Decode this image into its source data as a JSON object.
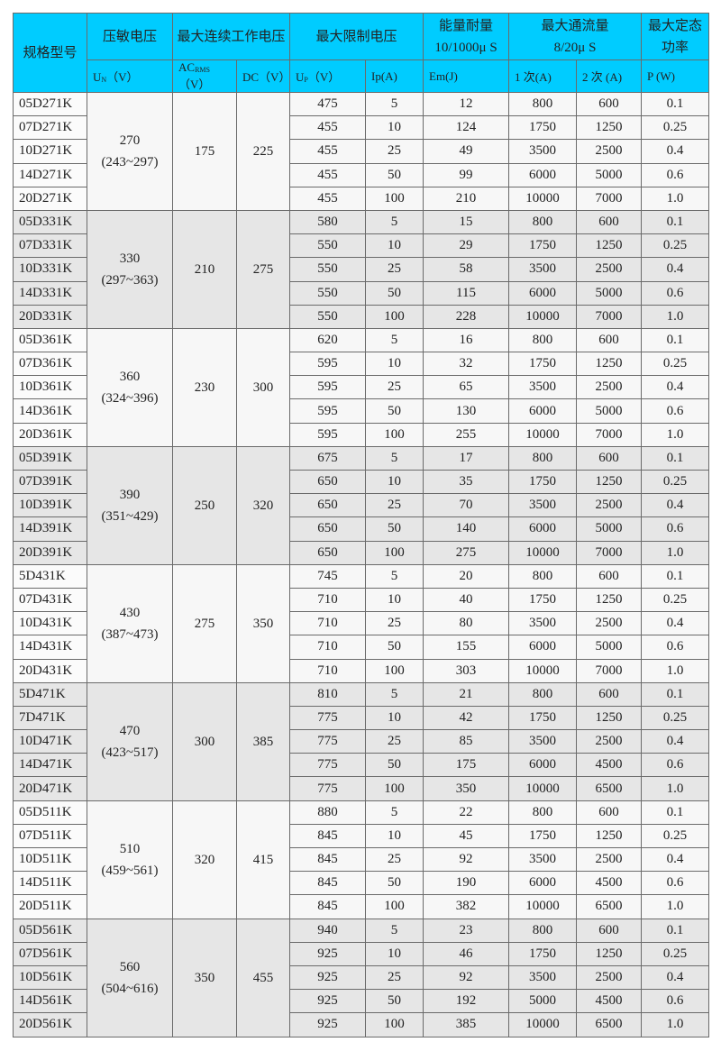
{
  "header": {
    "model": "规格型号",
    "varistor_voltage": "压敏电压",
    "max_continuous_voltage": "最大连续工作电压",
    "max_clamp_voltage": "最大限制电压",
    "energy": "能量耐量",
    "energy_sub": "10/1000μ S",
    "max_surge": "最大通流量",
    "max_surge_sub": "8/20μ S",
    "rated_power": "最大定态功率",
    "un": "U",
    "un_sub": "N",
    "un_unit": "（V）",
    "ac": "AC",
    "ac_sub": "RMS",
    "ac_unit": "（V）",
    "dc": "DC（V）",
    "up": "U",
    "up_sub": "P",
    "up_unit": "（V）",
    "ip": "Ip(A)",
    "em": "Em(J)",
    "once": "1 次(A)",
    "twice": "2 次 (A)",
    "p": "P (W)"
  },
  "groups": [
    {
      "un": "270",
      "range": "(243~297)",
      "ac": "175",
      "dc": "225",
      "rows": [
        [
          "05D271K",
          "475",
          "5",
          "12",
          "800",
          "600",
          "0.1"
        ],
        [
          "07D271K",
          "455",
          "10",
          "124",
          "1750",
          "1250",
          "0.25"
        ],
        [
          "10D271K",
          "455",
          "25",
          "49",
          "3500",
          "2500",
          "0.4"
        ],
        [
          "14D271K",
          "455",
          "50",
          "99",
          "6000",
          "5000",
          "0.6"
        ],
        [
          "20D271K",
          "455",
          "100",
          "210",
          "10000",
          "7000",
          "1.0"
        ]
      ]
    },
    {
      "un": "330",
      "range": "(297~363)",
      "ac": "210",
      "dc": "275",
      "rows": [
        [
          "05D331K",
          "580",
          "5",
          "15",
          "800",
          "600",
          "0.1"
        ],
        [
          "07D331K",
          "550",
          "10",
          "29",
          "1750",
          "1250",
          "0.25"
        ],
        [
          "10D331K",
          "550",
          "25",
          "58",
          "3500",
          "2500",
          "0.4"
        ],
        [
          "14D331K",
          "550",
          "50",
          "115",
          "6000",
          "5000",
          "0.6"
        ],
        [
          "20D331K",
          "550",
          "100",
          "228",
          "10000",
          "7000",
          "1.0"
        ]
      ]
    },
    {
      "un": "360",
      "range": "(324~396)",
      "ac": "230",
      "dc": "300",
      "rows": [
        [
          "05D361K",
          "620",
          "5",
          "16",
          "800",
          "600",
          "0.1"
        ],
        [
          "07D361K",
          "595",
          "10",
          "32",
          "1750",
          "1250",
          "0.25"
        ],
        [
          "10D361K",
          "595",
          "25",
          "65",
          "3500",
          "2500",
          "0.4"
        ],
        [
          "14D361K",
          "595",
          "50",
          "130",
          "6000",
          "5000",
          "0.6"
        ],
        [
          "20D361K",
          "595",
          "100",
          "255",
          "10000",
          "7000",
          "1.0"
        ]
      ]
    },
    {
      "un": "390",
      "range": "(351~429)",
      "ac": "250",
      "dc": "320",
      "rows": [
        [
          "05D391K",
          "675",
          "5",
          "17",
          "800",
          "600",
          "0.1"
        ],
        [
          "07D391K",
          "650",
          "10",
          "35",
          "1750",
          "1250",
          "0.25"
        ],
        [
          "10D391K",
          "650",
          "25",
          "70",
          "3500",
          "2500",
          "0.4"
        ],
        [
          "14D391K",
          "650",
          "50",
          "140",
          "6000",
          "5000",
          "0.6"
        ],
        [
          "20D391K",
          "650",
          "100",
          "275",
          "10000",
          "7000",
          "1.0"
        ]
      ]
    },
    {
      "un": "430",
      "range": "(387~473)",
      "ac": "275",
      "dc": "350",
      "rows": [
        [
          "5D431K",
          "745",
          "5",
          "20",
          "800",
          "600",
          "0.1"
        ],
        [
          "07D431K",
          "710",
          "10",
          "40",
          "1750",
          "1250",
          "0.25"
        ],
        [
          "10D431K",
          "710",
          "25",
          "80",
          "3500",
          "2500",
          "0.4"
        ],
        [
          "14D431K",
          "710",
          "50",
          "155",
          "6000",
          "5000",
          "0.6"
        ],
        [
          "20D431K",
          "710",
          "100",
          "303",
          "10000",
          "7000",
          "1.0"
        ]
      ]
    },
    {
      "un": "470",
      "range": "(423~517)",
      "ac": "300",
      "dc": "385",
      "rows": [
        [
          "5D471K",
          "810",
          "5",
          "21",
          "800",
          "600",
          "0.1"
        ],
        [
          "7D471K",
          "775",
          "10",
          "42",
          "1750",
          "1250",
          "0.25"
        ],
        [
          "10D471K",
          "775",
          "25",
          "85",
          "3500",
          "2500",
          "0.4"
        ],
        [
          "14D471K",
          "775",
          "50",
          "175",
          "6000",
          "4500",
          "0.6"
        ],
        [
          "20D471K",
          "775",
          "100",
          "350",
          "10000",
          "6500",
          "1.0"
        ]
      ]
    },
    {
      "un": "510",
      "range": "(459~561)",
      "ac": "320",
      "dc": "415",
      "rows": [
        [
          "05D511K",
          "880",
          "5",
          "22",
          "800",
          "600",
          "0.1"
        ],
        [
          "07D511K",
          "845",
          "10",
          "45",
          "1750",
          "1250",
          "0.25"
        ],
        [
          "10D511K",
          "845",
          "25",
          "92",
          "3500",
          "2500",
          "0.4"
        ],
        [
          "14D511K",
          "845",
          "50",
          "190",
          "6000",
          "4500",
          "0.6"
        ],
        [
          "20D511K",
          "845",
          "100",
          "382",
          "10000",
          "6500",
          "1.0"
        ]
      ]
    },
    {
      "un": "560",
      "range": "(504~616)",
      "ac": "350",
      "dc": "455",
      "rows": [
        [
          "05D561K",
          "940",
          "5",
          "23",
          "800",
          "600",
          "0.1"
        ],
        [
          "07D561K",
          "925",
          "10",
          "46",
          "1750",
          "1250",
          "0.25"
        ],
        [
          "10D561K",
          "925",
          "25",
          "92",
          "3500",
          "2500",
          "0.4"
        ],
        [
          "14D561K",
          "925",
          "50",
          "192",
          "5000",
          "4500",
          "0.6"
        ],
        [
          "20D561K",
          "925",
          "100",
          "385",
          "10000",
          "6500",
          "1.0"
        ]
      ]
    }
  ]
}
